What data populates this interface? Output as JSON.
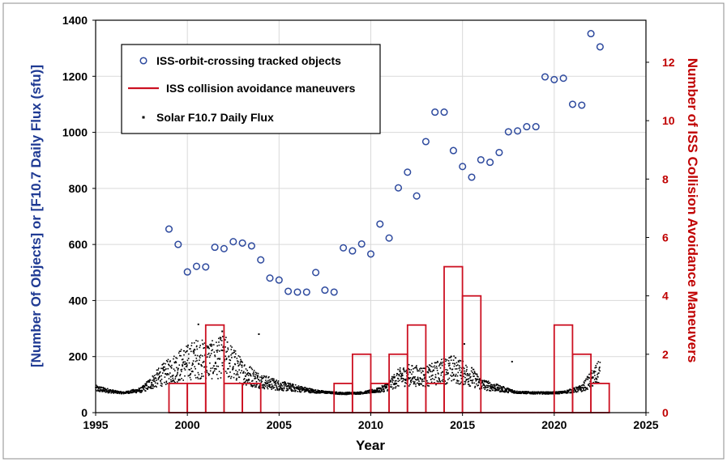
{
  "chart_data": {
    "type": "combo",
    "xlabel": "Year",
    "ylabel_left": "[Number Of Objects] or [F10.7 Daily Flux (sfu)]",
    "ylabel_right": "Number of ISS Collision Avoidance Maneuvers",
    "xlim": [
      1995,
      2025
    ],
    "ylim_left": [
      0,
      1400
    ],
    "ylim_right": [
      0,
      13.44
    ],
    "x_ticks": [
      "1995",
      "2000",
      "2005",
      "2010",
      "2015",
      "2020",
      "2025"
    ],
    "y_left_ticks": [
      "0",
      "200",
      "400",
      "600",
      "800",
      "1000",
      "1200",
      "1400"
    ],
    "y_right_ticks": [
      "0",
      "2",
      "4",
      "6",
      "8",
      "10",
      "12"
    ],
    "grid": true,
    "legend": {
      "placement": "top-left",
      "entries": [
        "ISS-orbit-crossing tracked objects",
        "ISS collision avoidance maneuvers",
        "Solar F10.7 Daily Flux"
      ]
    },
    "series": [
      {
        "name": "ISS-orbit-crossing tracked objects",
        "kind": "scatter",
        "color": "#2e4a9e",
        "x": [
          1999.0,
          1999.5,
          2000.0,
          2000.5,
          2001.0,
          2001.5,
          2002.0,
          2002.5,
          2003.0,
          2003.5,
          2004.0,
          2004.5,
          2005.0,
          2005.5,
          2006.0,
          2006.5,
          2007.0,
          2007.5,
          2008.0,
          2008.5,
          2009.0,
          2009.5,
          2010.0,
          2010.5,
          2011.0,
          2011.5,
          2012.0,
          2012.5,
          2013.0,
          2013.5,
          2014.0,
          2014.5,
          2015.0,
          2015.5,
          2016.0,
          2016.5,
          2017.0,
          2017.5,
          2018.0,
          2018.5,
          2019.0,
          2019.5,
          2020.0,
          2020.5,
          2021.0,
          2021.5,
          2022.0,
          2022.5
        ],
        "y": [
          655,
          600,
          502,
          522,
          520,
          590,
          585,
          610,
          605,
          595,
          545,
          480,
          473,
          433,
          430,
          430,
          500,
          437,
          430,
          588,
          577,
          602,
          566,
          673,
          623,
          802,
          858,
          773,
          967,
          1072,
          1072,
          935,
          878,
          840,
          902,
          893,
          928,
          1002,
          1005,
          1020,
          1020,
          1198,
          1188,
          1193,
          1100,
          1097,
          1352,
          1305
        ]
      },
      {
        "name": "ISS collision avoidance maneuvers",
        "kind": "step",
        "color": "#cc1122",
        "years": [
          1999,
          2000,
          2001,
          2002,
          2003,
          2004,
          2005,
          2006,
          2007,
          2008,
          2009,
          2010,
          2011,
          2012,
          2013,
          2014,
          2015,
          2016,
          2017,
          2018,
          2019,
          2020,
          2021,
          2022
        ],
        "values": [
          1,
          1,
          3,
          1,
          1,
          0,
          0,
          0,
          0,
          1,
          2,
          1,
          2,
          3,
          1,
          5,
          4,
          0,
          0,
          0,
          0,
          3,
          2,
          1
        ]
      },
      {
        "name": "Solar F10.7 Daily Flux",
        "kind": "dense-scatter",
        "color": "#000000",
        "profile_x": [
          1995.0,
          1996.0,
          1996.5,
          1997.5,
          1998.5,
          1999.5,
          2000.5,
          2001.5,
          2002.0,
          2003.0,
          2004.0,
          2005.0,
          2006.0,
          2007.0,
          2008.0,
          2008.5,
          2009.5,
          2010.5,
          2011.0,
          2011.5,
          2012.0,
          2013.0,
          2014.0,
          2014.5,
          2015.5,
          2016.0,
          2017.0,
          2018.0,
          2019.0,
          2020.0,
          2020.5,
          2021.0,
          2021.5,
          2022.0,
          2022.5
        ],
        "profile_y": [
          85,
          74,
          70,
          80,
          125,
          160,
          185,
          180,
          195,
          140,
          110,
          95,
          85,
          75,
          70,
          68,
          70,
          80,
          95,
          120,
          130,
          125,
          145,
          150,
          125,
          100,
          85,
          72,
          70,
          70,
          72,
          78,
          85,
          115,
          140
        ],
        "notable_peaks": [
          {
            "x": 2000.6,
            "y": 315
          },
          {
            "x": 2001.9,
            "y": 290
          },
          {
            "x": 2003.9,
            "y": 280
          },
          {
            "x": 2015.1,
            "y": 245
          },
          {
            "x": 2017.7,
            "y": 182
          }
        ]
      }
    ]
  },
  "colors": {
    "objects": "#2e4a9e",
    "maneuvers": "#cc1122",
    "flux": "#000000",
    "left_title": "#1f3a93",
    "right_title": "#c00000",
    "right_ticks": "#c00000"
  }
}
